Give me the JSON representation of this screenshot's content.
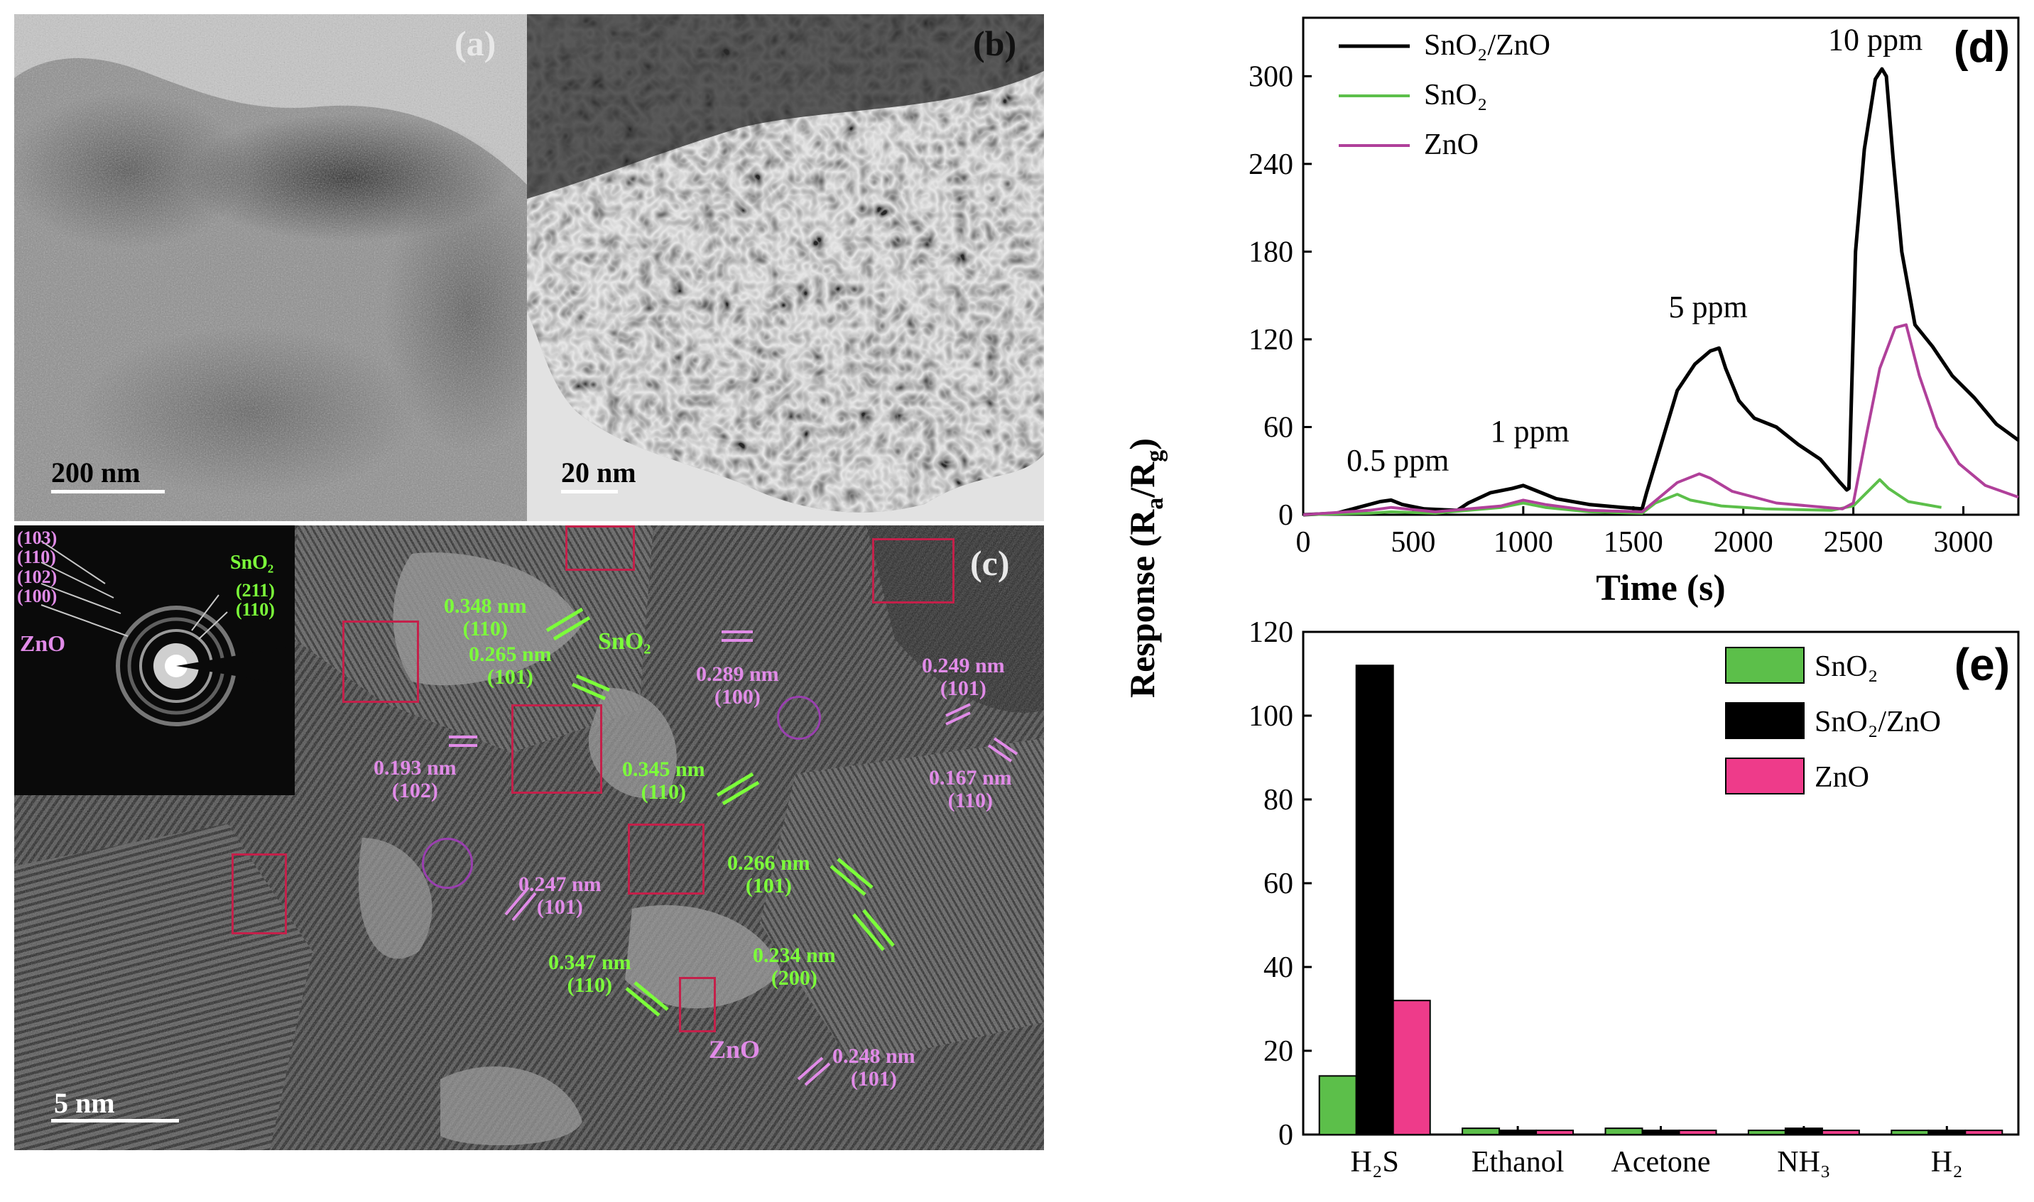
{
  "panel_a": {
    "label": "(a)",
    "scale": "200 nm"
  },
  "panel_b": {
    "label": "(b)",
    "scale": "20 nm"
  },
  "panel_c": {
    "label": "(c)",
    "scale": "5 nm",
    "fft_pink": [
      "(103)",
      "(110)",
      "(102)",
      "(100)"
    ],
    "fft_zno": "ZnO",
    "fft_sno2": "SnO₂",
    "fft_green": [
      "(211)",
      "(110)"
    ],
    "green": [
      {
        "d": "0.348 nm",
        "hkl": "(110)"
      },
      {
        "d": "0.265 nm",
        "hkl": "(101)"
      },
      {
        "d": "0.345 nm",
        "hkl": "(110)"
      },
      {
        "d": "0.266 nm",
        "hkl": "(101)"
      },
      {
        "d": "0.234 nm",
        "hkl": "(200)"
      },
      {
        "d": "0.347 nm",
        "hkl": "(110)"
      }
    ],
    "sno2_tag": "SnO₂",
    "pink": [
      {
        "d": "0.289 nm",
        "hkl": "(100)"
      },
      {
        "d": "0.249 nm",
        "hkl": "(101)"
      },
      {
        "d": "0.167 nm",
        "hkl": "(110)"
      },
      {
        "d": "0.193 nm",
        "hkl": "(102)"
      },
      {
        "d": "0.247 nm",
        "hkl": "(101)"
      },
      {
        "d": "0.248 nm",
        "hkl": "(101)"
      }
    ],
    "zno_tag": "ZnO"
  },
  "colors": {
    "black_series": "#000000",
    "sno2": "#5cbf4a",
    "zno_line": "#b0409a",
    "zno_bar": "#ee3b8a",
    "green_annotation": "#7cff3a",
    "pink_annotation": "#e18be8",
    "roi_box": "#c4204a"
  },
  "shared_ylabel": "Response (Ra/Rg)",
  "chart_data": [
    {
      "id": "d",
      "type": "line",
      "label": "(d)",
      "xlabel": "Time (s)",
      "xlim": [
        0,
        3250
      ],
      "ylim": [
        0,
        340
      ],
      "xticks": [
        0,
        500,
        1000,
        1500,
        2000,
        2500,
        3000
      ],
      "yticks": [
        0,
        60,
        120,
        180,
        240,
        300
      ],
      "legend_position": "top-left",
      "annotations": [
        {
          "text": "0.5 ppm",
          "x": 430,
          "y": 30
        },
        {
          "text": "1 ppm",
          "x": 1030,
          "y": 50
        },
        {
          "text": "5 ppm",
          "x": 1840,
          "y": 135
        },
        {
          "text": "10 ppm",
          "x": 2600,
          "y": 318
        }
      ],
      "series": [
        {
          "name": "SnO₂/ZnO",
          "color": "#000000",
          "points": [
            [
              0,
              0
            ],
            [
              150,
              1
            ],
            [
              250,
              5
            ],
            [
              350,
              9
            ],
            [
              400,
              10
            ],
            [
              450,
              7
            ],
            [
              550,
              4
            ],
            [
              700,
              3
            ],
            [
              750,
              8
            ],
            [
              850,
              15
            ],
            [
              950,
              18
            ],
            [
              1000,
              20
            ],
            [
              1050,
              17
            ],
            [
              1150,
              11
            ],
            [
              1300,
              7
            ],
            [
              1450,
              5
            ],
            [
              1540,
              4
            ],
            [
              1560,
              15
            ],
            [
              1620,
              45
            ],
            [
              1700,
              85
            ],
            [
              1780,
              103
            ],
            [
              1850,
              112
            ],
            [
              1890,
              114
            ],
            [
              1920,
              100
            ],
            [
              1980,
              78
            ],
            [
              2050,
              66
            ],
            [
              2150,
              60
            ],
            [
              2250,
              48
            ],
            [
              2350,
              38
            ],
            [
              2440,
              22
            ],
            [
              2470,
              17
            ],
            [
              2480,
              18
            ],
            [
              2510,
              180
            ],
            [
              2550,
              250
            ],
            [
              2600,
              298
            ],
            [
              2630,
              305
            ],
            [
              2650,
              300
            ],
            [
              2680,
              245
            ],
            [
              2720,
              180
            ],
            [
              2780,
              130
            ],
            [
              2860,
              115
            ],
            [
              2950,
              95
            ],
            [
              3050,
              80
            ],
            [
              3150,
              62
            ],
            [
              3250,
              51
            ]
          ]
        },
        {
          "name": "SnO₂",
          "color": "#5cbf4a",
          "points": [
            [
              0,
              0
            ],
            [
              300,
              1
            ],
            [
              400,
              2
            ],
            [
              600,
              1
            ],
            [
              900,
              5
            ],
            [
              1000,
              8
            ],
            [
              1100,
              5
            ],
            [
              1300,
              2
            ],
            [
              1540,
              1
            ],
            [
              1600,
              8
            ],
            [
              1700,
              14
            ],
            [
              1760,
              10
            ],
            [
              1900,
              6
            ],
            [
              2100,
              4
            ],
            [
              2400,
              3
            ],
            [
              2500,
              6
            ],
            [
              2580,
              18
            ],
            [
              2620,
              24
            ],
            [
              2660,
              18
            ],
            [
              2750,
              9
            ],
            [
              2900,
              5
            ]
          ]
        },
        {
          "name": "ZnO",
          "color": "#b0409a",
          "points": [
            [
              0,
              0
            ],
            [
              300,
              3
            ],
            [
              400,
              5
            ],
            [
              600,
              2
            ],
            [
              900,
              6
            ],
            [
              1000,
              10
            ],
            [
              1100,
              7
            ],
            [
              1300,
              3
            ],
            [
              1540,
              2
            ],
            [
              1620,
              12
            ],
            [
              1700,
              22
            ],
            [
              1800,
              28
            ],
            [
              1850,
              25
            ],
            [
              1950,
              16
            ],
            [
              2150,
              8
            ],
            [
              2450,
              4
            ],
            [
              2500,
              8
            ],
            [
              2560,
              55
            ],
            [
              2620,
              100
            ],
            [
              2690,
              128
            ],
            [
              2740,
              130
            ],
            [
              2800,
              95
            ],
            [
              2880,
              60
            ],
            [
              2980,
              35
            ],
            [
              3100,
              20
            ],
            [
              3250,
              12
            ]
          ]
        }
      ]
    },
    {
      "id": "e",
      "type": "bar",
      "label": "(e)",
      "categories": [
        "H₂S",
        "Ethanol",
        "Acetone",
        "NH₃",
        "H₂"
      ],
      "ylim": [
        0,
        120
      ],
      "yticks": [
        0,
        20,
        40,
        60,
        80,
        100,
        120
      ],
      "legend_position": "top-right",
      "series": [
        {
          "name": "SnO₂",
          "color": "#5cbf4a",
          "values": [
            14,
            1.5,
            1.5,
            1,
            1
          ]
        },
        {
          "name": "SnO₂/ZnO",
          "color": "#000000",
          "values": [
            112,
            1,
            1,
            1.5,
            1
          ]
        },
        {
          "name": "ZnO",
          "color": "#ee3b8a",
          "values": [
            32,
            1,
            1,
            1,
            1
          ]
        }
      ]
    }
  ]
}
